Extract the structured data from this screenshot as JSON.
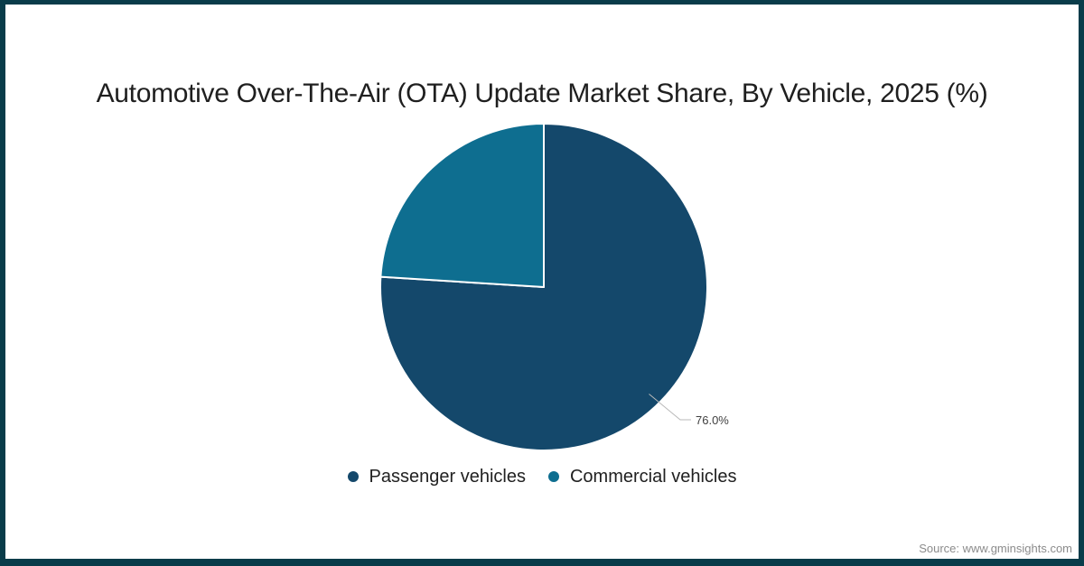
{
  "frame": {
    "border_color": "#093c4a",
    "background": "#ffffff"
  },
  "header": {
    "title": "Automotive Over-The-Air (OTA) Update Market Share, By Vehicle, 2025 (%)"
  },
  "footer": {
    "source": "Source: www.gminsights.com"
  },
  "chart_data": {
    "type": "pie",
    "title": "Automotive Over-The-Air (OTA) Update Market Share, By Vehicle, 2025 (%)",
    "categories": [
      "Passenger vehicles",
      "Commercial vehicles"
    ],
    "values": [
      76.0,
      24.0
    ],
    "colors": [
      "#14486b",
      "#0e6e90"
    ],
    "slice_border_color": "#ffffff",
    "start_angle": "top",
    "direction": "clockwise",
    "data_labels": [
      {
        "text": "76.0%",
        "slice": "Passenger vehicles"
      }
    ],
    "legend_position": "bottom",
    "legend": [
      {
        "label": "Passenger vehicles",
        "color": "#14486b"
      },
      {
        "label": "Commercial vehicles",
        "color": "#0e6e90"
      }
    ]
  }
}
